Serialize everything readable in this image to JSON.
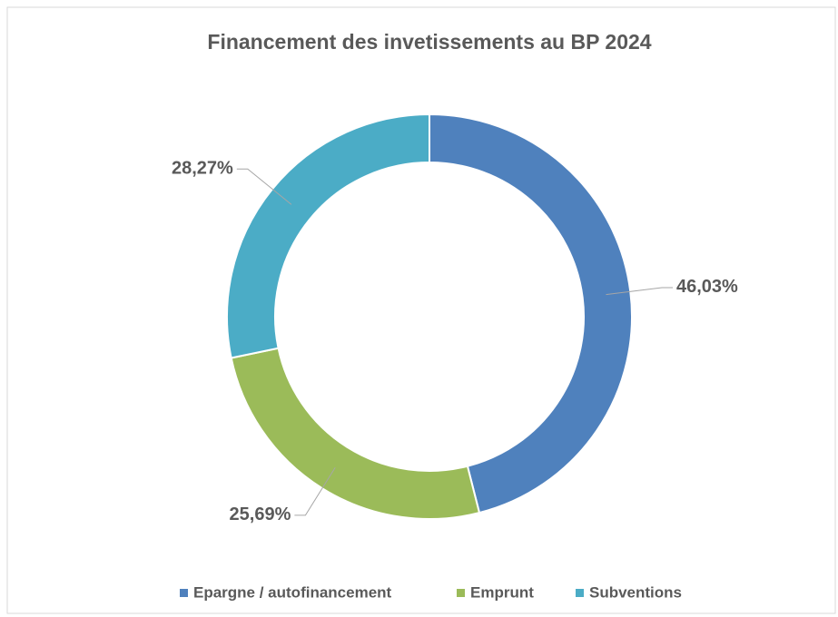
{
  "chart_data": {
    "type": "donut",
    "title": "Financement des invetissements au BP 2024",
    "categories": [
      "Epargne / autofinancement",
      "Emprunt",
      "Subventions"
    ],
    "values": [
      46.03,
      25.69,
      28.27
    ],
    "value_labels": [
      "46,03%",
      "25,69%",
      "28,27%"
    ],
    "colors": [
      "#4f81bd",
      "#9bbb59",
      "#4bacc6"
    ],
    "legend": "bottom"
  }
}
